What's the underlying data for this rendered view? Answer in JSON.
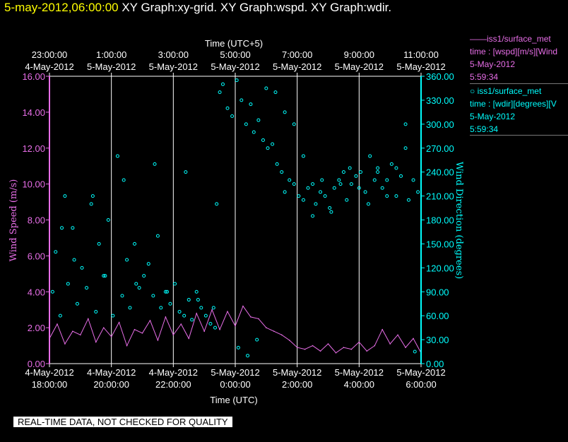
{
  "header": {
    "timestamp": "5-may-2012,06:00:00",
    "graphs": "XY Graph:xy-grid.  XY Graph:wspd.  XY Graph:wdir."
  },
  "top_axis": {
    "label": "Time (UTC+5)",
    "ticks": [
      {
        "time": "23:00:00",
        "date": "4-May-2012"
      },
      {
        "time": "1:00:00",
        "date": "5-May-2012"
      },
      {
        "time": "3:00:00",
        "date": "5-May-2012"
      },
      {
        "time": "5:00:00",
        "date": "5-May-2012"
      },
      {
        "time": "7:00:00",
        "date": "5-May-2012"
      },
      {
        "time": "9:00:00",
        "date": "5-May-2012"
      },
      {
        "time": "11:00:00",
        "date": "5-May-2012"
      }
    ]
  },
  "bottom_axis": {
    "label": "Time (UTC)",
    "ticks": [
      {
        "date": "4-May-2012",
        "time": "18:00:00"
      },
      {
        "date": "4-May-2012",
        "time": "20:00:00"
      },
      {
        "date": "4-May-2012",
        "time": "22:00:00"
      },
      {
        "date": "5-May-2012",
        "time": "0:00:00"
      },
      {
        "date": "5-May-2012",
        "time": "2:00:00"
      },
      {
        "date": "5-May-2012",
        "time": "4:00:00"
      },
      {
        "date": "5-May-2012",
        "time": "6:00:00"
      }
    ]
  },
  "left_axis": {
    "label": "Wind Speed (m/s)",
    "ticks": [
      "0.00",
      "2.00",
      "4.00",
      "6.00",
      "8.00",
      "10.00",
      "12.00",
      "14.00",
      "16.00"
    ]
  },
  "right_axis": {
    "label": "Wind Direction (degrees)",
    "ticks": [
      "0.00",
      "30.00",
      "60.00",
      "90.00",
      "120.00",
      "150.00",
      "180.00",
      "210.00",
      "240.00",
      "270.00",
      "300.00",
      "330.00",
      "360.00"
    ]
  },
  "legend": {
    "series1": {
      "line1": "——iss1/surface_met",
      "line2": "time : [wspd][m/s][Wind",
      "line3": "5-May-2012",
      "line4": "5:59:34"
    },
    "series2": {
      "line1": "○ iss1/surface_met",
      "line2": "time : [wdir][degrees][V",
      "line3": "5-May-2012",
      "line4": "5:59:34"
    }
  },
  "quality_note": "REAL-TIME DATA, NOT CHECKED FOR QUALITY",
  "colors": {
    "speed": "#e86ee8",
    "direction": "#00ffff",
    "title_time": "#ffff00",
    "axis": "#ffffff"
  },
  "chart_data": {
    "type": "line",
    "title": "5-may-2012,06:00:00  XY Graph:xy-grid.  XY Graph:wspd.  XY Graph:wdir.",
    "xlabel": "Time (UTC)",
    "xlabel_top": "Time (UTC+5)",
    "x_unit": "hours since 4-May-2012 18:00 UTC",
    "xlim": [
      0,
      12
    ],
    "ylabel": "Wind Speed (m/s)",
    "ylim": [
      0,
      16
    ],
    "y2label": "Wind Direction (degrees)",
    "y2lim": [
      0,
      360
    ],
    "grid": "vertical",
    "series": [
      {
        "name": "iss1/surface_met wspd",
        "type": "line",
        "axis": "left",
        "x": [
          0,
          0.25,
          0.5,
          0.75,
          1,
          1.25,
          1.5,
          1.75,
          2,
          2.25,
          2.5,
          2.75,
          3,
          3.25,
          3.5,
          3.75,
          4,
          4.25,
          4.5,
          4.75,
          5,
          5.25,
          5.5,
          5.75,
          6,
          6.25,
          6.5,
          6.75,
          7,
          7.25,
          7.5,
          7.75,
          8,
          8.25,
          8.5,
          8.75,
          9,
          9.25,
          9.5,
          9.75,
          10,
          10.25,
          10.5,
          10.75,
          11,
          11.25,
          11.5,
          11.75,
          12
        ],
        "values": [
          1.4,
          2.2,
          1.1,
          1.8,
          1.6,
          2.5,
          1.2,
          2.0,
          1.5,
          2.3,
          1.0,
          1.9,
          1.7,
          2.4,
          1.3,
          2.6,
          1.6,
          2.2,
          1.4,
          2.8,
          1.8,
          3.0,
          1.9,
          2.9,
          2.1,
          3.2,
          2.6,
          2.5,
          2.0,
          1.8,
          1.6,
          1.3,
          0.9,
          0.8,
          1.0,
          0.7,
          1.1,
          0.6,
          0.9,
          0.8,
          1.2,
          0.7,
          1.0,
          1.9,
          1.1,
          1.6,
          0.9,
          1.4,
          0.6
        ]
      },
      {
        "name": "iss1/surface_met wdir",
        "type": "scatter",
        "axis": "right",
        "x": [
          0.1,
          0.2,
          0.35,
          0.5,
          0.6,
          0.75,
          0.9,
          1.05,
          1.2,
          1.35,
          1.5,
          1.6,
          1.75,
          1.9,
          2.05,
          2.2,
          2.35,
          2.5,
          2.6,
          2.75,
          2.9,
          3.05,
          3.2,
          3.35,
          3.5,
          3.6,
          3.75,
          3.9,
          4.05,
          4.2,
          4.35,
          4.5,
          4.6,
          4.75,
          4.9,
          5.05,
          5.2,
          5.35,
          5.5,
          5.6,
          5.75,
          5.9,
          6.05,
          6.2,
          6.35,
          6.5,
          6.6,
          6.75,
          6.9,
          7.05,
          7.2,
          7.35,
          7.5,
          7.6,
          7.75,
          7.9,
          8.05,
          8.2,
          8.35,
          8.5,
          8.6,
          8.75,
          8.9,
          9.05,
          9.2,
          9.35,
          9.5,
          9.6,
          9.75,
          9.9,
          10.05,
          10.2,
          10.35,
          10.5,
          10.6,
          10.75,
          10.9,
          11.05,
          11.2,
          11.35,
          11.5,
          11.6,
          11.75,
          11.9,
          6.1,
          6.4,
          6.7,
          7.0,
          7.3,
          7.6,
          7.9,
          8.2,
          8.5,
          8.8,
          9.1,
          9.4,
          9.7,
          10.0,
          10.3,
          10.6,
          10.9,
          11.2,
          11.5,
          11.8,
          0.4,
          1.4,
          2.4,
          3.4,
          4.4,
          5.4,
          0.8,
          1.8,
          2.8,
          3.8,
          4.8,
          5.3
        ],
        "values": [
          90,
          140,
          60,
          210,
          100,
          170,
          75,
          120,
          95,
          200,
          65,
          150,
          110,
          180,
          60,
          260,
          85,
          130,
          70,
          150,
          95,
          110,
          125,
          85,
          160,
          70,
          90,
          75,
          100,
          65,
          60,
          80,
          55,
          90,
          70,
          60,
          50,
          45,
          340,
          350,
          320,
          310,
          355,
          330,
          300,
          325,
          290,
          305,
          280,
          270,
          275,
          250,
          240,
          215,
          230,
          225,
          210,
          205,
          220,
          185,
          200,
          215,
          210,
          195,
          220,
          230,
          240,
          205,
          225,
          235,
          240,
          215,
          260,
          230,
          245,
          220,
          210,
          250,
          245,
          235,
          270,
          205,
          230,
          215,
          20,
          10,
          30,
          345,
          340,
          315,
          300,
          260,
          225,
          230,
          190,
          225,
          245,
          220,
          200,
          240,
          230,
          210,
          300,
          15,
          170,
          210,
          230,
          250,
          240,
          200,
          130,
          110,
          100,
          90,
          80,
          70
        ]
      }
    ]
  }
}
